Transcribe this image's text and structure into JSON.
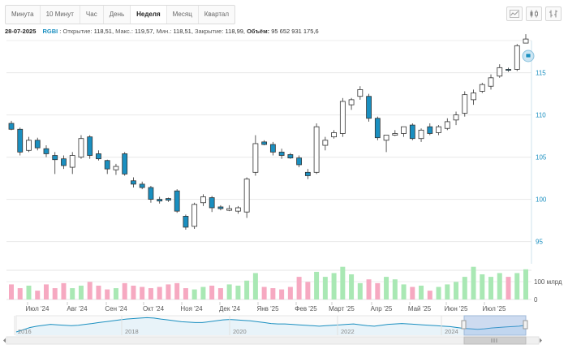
{
  "toolbar": {
    "intervals": [
      "Минута",
      "10 Минут",
      "Час",
      "День",
      "Неделя",
      "Месяц",
      "Квартал"
    ],
    "active_interval": "Неделя",
    "icons": [
      "line-chart-icon",
      "candlestick-chart-icon",
      "bar-chart-icon"
    ]
  },
  "info": {
    "date": "28-07-2025",
    "ticker": "RGBI",
    "open_label": "Открытие:",
    "open": "118,51",
    "high_label": "Макс.:",
    "high": "119,57",
    "low_label": "Мин.:",
    "low": "118,51",
    "close_label": "Закрытие:",
    "close": "118,99",
    "volume_label": "Объём:",
    "volume": "95 652 931 175,6"
  },
  "chart_data": {
    "type": "candlestick",
    "y_ticks": [
      "95",
      "100",
      "105",
      "110",
      "115"
    ],
    "ylim": [
      94,
      121
    ],
    "volume_tick": "100 млрд",
    "volume_zero": "0",
    "x_labels": [
      "Июл '24",
      "Авг '24",
      "Сен '24",
      "Окт '24",
      "Ноя '24",
      "Дек '24",
      "Янв '25",
      "Фев '25",
      "Март '25",
      "Апр '25",
      "Май '25",
      "Июн '25",
      "Июл '25"
    ],
    "navigator_labels": [
      "2016",
      "2018",
      "2020",
      "2022",
      "2024"
    ],
    "colors": {
      "up": "#ffffff",
      "down": "#1a8fc0",
      "vol_up": "#a9e8b4",
      "vol_down": "#f6a9c1",
      "line": "#1a8fc0"
    },
    "candles": [
      {
        "o": 109.0,
        "h": 109.3,
        "l": 108.2,
        "c": 108.3,
        "v": 12
      },
      {
        "o": 108.3,
        "h": 108.5,
        "l": 105.2,
        "c": 105.6,
        "v": 9
      },
      {
        "o": 105.8,
        "h": 107.4,
        "l": 105.6,
        "c": 107.0,
        "v": 11
      },
      {
        "o": 107.0,
        "h": 107.3,
        "l": 105.8,
        "c": 106.1,
        "v": 7
      },
      {
        "o": 106.0,
        "h": 106.4,
        "l": 105.0,
        "c": 105.4,
        "v": 12
      },
      {
        "o": 105.2,
        "h": 105.6,
        "l": 103.0,
        "c": 104.7,
        "v": 9
      },
      {
        "o": 104.8,
        "h": 105.2,
        "l": 103.6,
        "c": 104.0,
        "v": 13
      },
      {
        "o": 103.8,
        "h": 105.6,
        "l": 103.0,
        "c": 105.2,
        "v": 9
      },
      {
        "o": 105.0,
        "h": 107.6,
        "l": 104.8,
        "c": 107.2,
        "v": 11
      },
      {
        "o": 107.4,
        "h": 107.6,
        "l": 104.8,
        "c": 105.2,
        "v": 14
      },
      {
        "o": 105.4,
        "h": 105.8,
        "l": 104.6,
        "c": 104.8,
        "v": 11
      },
      {
        "o": 104.6,
        "h": 104.7,
        "l": 103.0,
        "c": 103.6,
        "v": 8
      },
      {
        "o": 103.5,
        "h": 104.2,
        "l": 102.9,
        "c": 103.9,
        "v": 9
      },
      {
        "o": 105.4,
        "h": 105.6,
        "l": 102.8,
        "c": 103.0,
        "v": 13
      },
      {
        "o": 102.2,
        "h": 102.6,
        "l": 101.4,
        "c": 101.8,
        "v": 11
      },
      {
        "o": 101.8,
        "h": 102.1,
        "l": 101.2,
        "c": 101.4,
        "v": 10
      },
      {
        "o": 101.4,
        "h": 101.6,
        "l": 99.6,
        "c": 100.0,
        "v": 9
      },
      {
        "o": 100.0,
        "h": 100.3,
        "l": 99.5,
        "c": 99.8,
        "v": 10
      },
      {
        "o": 100.1,
        "h": 100.2,
        "l": 99.7,
        "c": 99.9,
        "v": 12
      },
      {
        "o": 101.0,
        "h": 101.2,
        "l": 98.4,
        "c": 98.6,
        "v": 13
      },
      {
        "o": 98.0,
        "h": 98.2,
        "l": 96.4,
        "c": 96.7,
        "v": 9
      },
      {
        "o": 96.8,
        "h": 99.6,
        "l": 96.5,
        "c": 99.4,
        "v": 8
      },
      {
        "o": 99.6,
        "h": 100.6,
        "l": 99.2,
        "c": 100.3,
        "v": 10
      },
      {
        "o": 100.2,
        "h": 100.4,
        "l": 98.5,
        "c": 99.0,
        "v": 11
      },
      {
        "o": 99.1,
        "h": 99.3,
        "l": 98.7,
        "c": 98.9,
        "v": 9
      },
      {
        "o": 98.7,
        "h": 99.3,
        "l": 98.6,
        "c": 98.9,
        "v": 12
      },
      {
        "o": 98.6,
        "h": 99.2,
        "l": 98.3,
        "c": 99.0,
        "v": 11
      },
      {
        "o": 98.5,
        "h": 102.6,
        "l": 97.8,
        "c": 102.4,
        "v": 15
      },
      {
        "o": 103.2,
        "h": 107.6,
        "l": 102.8,
        "c": 106.6,
        "v": 21
      },
      {
        "o": 106.8,
        "h": 107.0,
        "l": 106.4,
        "c": 106.5,
        "v": 10
      },
      {
        "o": 106.5,
        "h": 106.8,
        "l": 105.2,
        "c": 105.6,
        "v": 9
      },
      {
        "o": 105.6,
        "h": 106.0,
        "l": 104.8,
        "c": 105.2,
        "v": 8
      },
      {
        "o": 105.3,
        "h": 105.5,
        "l": 104.8,
        "c": 104.9,
        "v": 10
      },
      {
        "o": 104.9,
        "h": 105.2,
        "l": 103.8,
        "c": 104.1,
        "v": 18
      },
      {
        "o": 103.2,
        "h": 103.6,
        "l": 102.4,
        "c": 102.8,
        "v": 14
      },
      {
        "o": 103.2,
        "h": 109.0,
        "l": 103.0,
        "c": 108.6,
        "v": 22
      },
      {
        "o": 106.4,
        "h": 107.4,
        "l": 105.8,
        "c": 107.0,
        "v": 18
      },
      {
        "o": 107.4,
        "h": 108.2,
        "l": 107.2,
        "c": 107.9,
        "v": 21
      },
      {
        "o": 107.8,
        "h": 112.0,
        "l": 107.4,
        "c": 111.6,
        "v": 26
      },
      {
        "o": 111.2,
        "h": 112.0,
        "l": 110.6,
        "c": 111.8,
        "v": 20
      },
      {
        "o": 112.2,
        "h": 113.4,
        "l": 111.8,
        "c": 113.0,
        "v": 13
      },
      {
        "o": 112.2,
        "h": 112.5,
        "l": 109.2,
        "c": 109.6,
        "v": 16
      },
      {
        "o": 109.6,
        "h": 109.8,
        "l": 107.0,
        "c": 107.3,
        "v": 13
      },
      {
        "o": 107.0,
        "h": 107.6,
        "l": 105.6,
        "c": 107.6,
        "v": 18
      },
      {
        "o": 107.6,
        "h": 108.2,
        "l": 107.5,
        "c": 107.8,
        "v": 16
      },
      {
        "o": 107.8,
        "h": 108.6,
        "l": 107.4,
        "c": 108.6,
        "v": 12
      },
      {
        "o": 108.8,
        "h": 109.0,
        "l": 107.0,
        "c": 107.2,
        "v": 10
      },
      {
        "o": 107.2,
        "h": 108.4,
        "l": 106.8,
        "c": 108.2,
        "v": 11
      },
      {
        "o": 108.6,
        "h": 109.0,
        "l": 107.6,
        "c": 107.8,
        "v": 7
      },
      {
        "o": 107.9,
        "h": 108.8,
        "l": 107.6,
        "c": 108.6,
        "v": 10
      },
      {
        "o": 108.4,
        "h": 109.6,
        "l": 108.2,
        "c": 109.2,
        "v": 12
      },
      {
        "o": 109.4,
        "h": 110.4,
        "l": 108.8,
        "c": 110.0,
        "v": 14
      },
      {
        "o": 110.2,
        "h": 112.8,
        "l": 109.8,
        "c": 112.4,
        "v": 18
      },
      {
        "o": 111.8,
        "h": 113.0,
        "l": 111.2,
        "c": 112.6,
        "v": 26
      },
      {
        "o": 112.8,
        "h": 113.8,
        "l": 112.6,
        "c": 113.6,
        "v": 20
      },
      {
        "o": 113.4,
        "h": 114.8,
        "l": 113.0,
        "c": 114.4,
        "v": 18
      },
      {
        "o": 114.6,
        "h": 116.0,
        "l": 114.4,
        "c": 115.6,
        "v": 21
      },
      {
        "o": 115.4,
        "h": 115.6,
        "l": 115.1,
        "c": 115.3,
        "v": 18
      },
      {
        "o": 115.4,
        "h": 118.4,
        "l": 115.2,
        "c": 118.2,
        "v": 21
      },
      {
        "o": 118.51,
        "h": 119.57,
        "l": 118.51,
        "c": 118.99,
        "v": 24
      }
    ],
    "navigator": [
      85,
      90,
      95,
      98,
      100,
      102,
      101,
      100,
      99,
      100,
      102,
      104,
      106,
      108,
      110,
      112,
      114,
      115,
      116,
      117,
      116,
      114,
      112,
      110,
      108,
      107,
      106,
      106,
      108,
      110,
      112,
      113,
      112,
      111,
      110,
      108,
      106,
      104,
      103,
      103,
      102,
      101,
      100,
      99,
      98,
      99,
      100,
      101,
      102,
      103,
      101,
      99,
      98,
      100,
      102,
      103,
      104,
      103,
      102,
      101,
      100,
      99,
      98,
      97,
      95,
      93,
      92,
      91,
      92,
      94,
      95,
      96,
      97,
      98,
      100
    ]
  }
}
